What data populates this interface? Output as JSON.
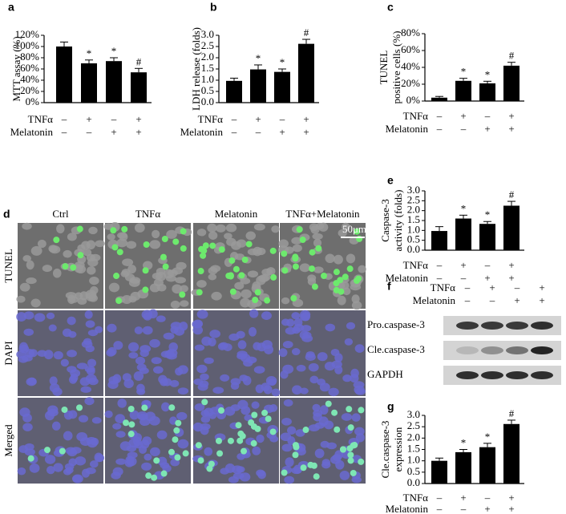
{
  "chart_data": [
    {
      "type": "bar",
      "panel": "a",
      "ylabel": [
        "MTT assay (%)"
      ],
      "categories": [
        null,
        null,
        null,
        null
      ],
      "values": [
        100,
        70,
        74,
        54
      ],
      "errors": [
        8,
        6,
        6,
        7
      ],
      "annotations": [
        null,
        "*",
        "*",
        "#"
      ],
      "color": "#000000",
      "ylim": [
        0,
        120
      ],
      "yticks": [
        {
          "value": 0,
          "label": "0%"
        },
        {
          "value": 20,
          "label": "20%"
        },
        {
          "value": 40,
          "label": "40%"
        },
        {
          "value": 60,
          "label": "60%"
        },
        {
          "value": 80,
          "label": "80%"
        },
        {
          "value": 100,
          "label": "100%"
        },
        {
          "value": 120,
          "label": "120%"
        }
      ],
      "treatments": [
        {
          "name": "TNFα",
          "signs": [
            "–",
            "+",
            "–",
            "+"
          ]
        },
        {
          "name": "Melatonin",
          "signs": [
            "–",
            "–",
            "+",
            "+"
          ]
        }
      ]
    },
    {
      "type": "bar",
      "panel": "b",
      "ylabel": [
        "LDH release (folds)"
      ],
      "categories": [
        null,
        null,
        null,
        null
      ],
      "values": [
        0.97,
        1.48,
        1.37,
        2.62
      ],
      "errors": [
        0.12,
        0.2,
        0.13,
        0.2
      ],
      "annotations": [
        null,
        "*",
        "*",
        "#"
      ],
      "color": "#000000",
      "ylim": [
        0,
        3
      ],
      "yticks": [
        {
          "value": 0,
          "label": "0.0"
        },
        0.5,
        {
          "value": 1,
          "label": "1.0"
        },
        1.5,
        {
          "value": 2,
          "label": "2.0"
        },
        2.5,
        {
          "value": 3,
          "label": "3.0"
        }
      ],
      "treatments": [
        {
          "name": "TNFα",
          "signs": [
            "–",
            "+",
            "–",
            "+"
          ]
        },
        {
          "name": "Melatonin",
          "signs": [
            "–",
            "–",
            "+",
            "+"
          ]
        }
      ]
    },
    {
      "type": "bar",
      "panel": "c",
      "ylabel": [
        "TUNEL",
        "positive cells (%)"
      ],
      "categories": [
        null,
        null,
        null,
        null
      ],
      "values": [
        4,
        24,
        21,
        42
      ],
      "errors": [
        1.5,
        3,
        2.5,
        4
      ],
      "annotations": [
        null,
        "*",
        "*",
        "#"
      ],
      "color": "#000000",
      "ylim": [
        0,
        80
      ],
      "yticks": [
        {
          "value": 0,
          "label": "0%"
        },
        {
          "value": 20,
          "label": "20%"
        },
        {
          "value": 40,
          "label": "40%"
        },
        {
          "value": 60,
          "label": "60%"
        },
        {
          "value": 80,
          "label": "80%"
        }
      ],
      "treatments": [
        {
          "name": "TNFα",
          "signs": [
            "–",
            "+",
            "–",
            "+"
          ]
        },
        {
          "name": "Melatonin",
          "signs": [
            "–",
            "–",
            "+",
            "+"
          ]
        }
      ]
    },
    {
      "type": "bar",
      "panel": "e",
      "ylabel": [
        "Caspase-3",
        "activity (folds)"
      ],
      "categories": [
        null,
        null,
        null,
        null
      ],
      "values": [
        0.97,
        1.6,
        1.33,
        2.25
      ],
      "errors": [
        0.22,
        0.17,
        0.12,
        0.22
      ],
      "annotations": [
        null,
        "*",
        "*",
        "#"
      ],
      "color": "#000000",
      "ylim": [
        0,
        3
      ],
      "yticks": [
        {
          "value": 0,
          "label": "0.0"
        },
        0.5,
        {
          "value": 1,
          "label": "1.0"
        },
        1.5,
        {
          "value": 2,
          "label": "2.0"
        },
        2.5,
        {
          "value": 3,
          "label": "3.0"
        }
      ],
      "treatments": [
        {
          "name": "TNFα",
          "signs": [
            "–",
            "+",
            "–",
            "+"
          ]
        },
        {
          "name": "Melatonin",
          "signs": [
            "–",
            "–",
            "+",
            "+"
          ]
        }
      ]
    },
    {
      "type": "bar",
      "panel": "g",
      "ylabel": [
        "Cle.caspase-3",
        "expression"
      ],
      "categories": [
        null,
        null,
        null,
        null
      ],
      "values": [
        1.0,
        1.38,
        1.6,
        2.62
      ],
      "errors": [
        0.12,
        0.12,
        0.17,
        0.17
      ],
      "annotations": [
        null,
        "*",
        "*",
        "#"
      ],
      "color": "#000000",
      "ylim": [
        0,
        3
      ],
      "yticks": [
        {
          "value": 0,
          "label": "0.0"
        },
        0.5,
        {
          "value": 1,
          "label": "1.0"
        },
        1.5,
        {
          "value": 2,
          "label": "2.0"
        },
        2.5,
        {
          "value": 3,
          "label": "3.0"
        }
      ],
      "treatments": [
        {
          "name": "TNFα",
          "signs": [
            "–",
            "+",
            "–",
            "+"
          ]
        },
        {
          "name": "Melatonin",
          "signs": [
            "–",
            "–",
            "+",
            "+"
          ]
        }
      ]
    }
  ],
  "microscopy": {
    "panel": "d",
    "columns": [
      "Ctrl",
      "TNFα",
      "Melatonin",
      "TNFα+Melatonin"
    ],
    "rows": [
      "TUNEL",
      "DAPI",
      "Merged"
    ],
    "scale_bar": "50μm"
  },
  "western_blot": {
    "panel": "f",
    "treatments": [
      {
        "name": "TNFα",
        "signs": [
          "–",
          "+",
          "–",
          "+"
        ]
      },
      {
        "name": "Melatonin",
        "signs": [
          "–",
          "–",
          "+",
          "+"
        ]
      }
    ],
    "bands": [
      "Pro.caspase-3",
      "Cle.caspase-3",
      "GAPDH"
    ]
  }
}
